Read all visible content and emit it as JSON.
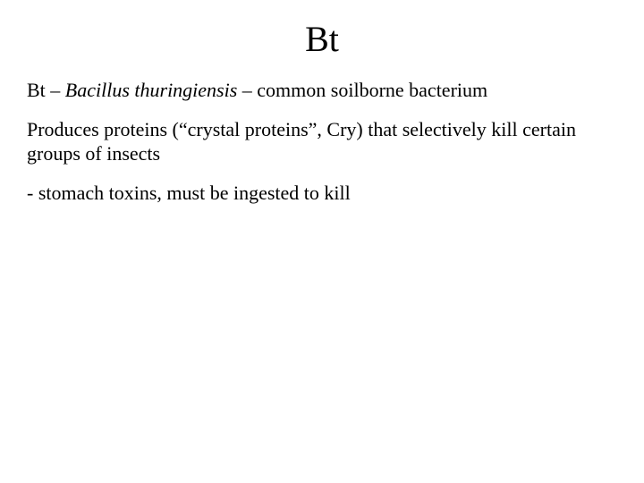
{
  "slide": {
    "title": "Bt",
    "line1_prefix": "Bt – ",
    "line1_italic": "Bacillus thuringiensis",
    "line1_suffix": " – common soilborne bacterium",
    "line2": "Produces proteins (“crystal proteins”, Cry) that selectively kill certain groups of insects",
    "line3": "-  stomach toxins, must be ingested to kill"
  },
  "style": {
    "background_color": "#ffffff",
    "text_color": "#000000",
    "title_fontsize": 40,
    "body_fontsize": 22,
    "font_family": "Times New Roman"
  }
}
